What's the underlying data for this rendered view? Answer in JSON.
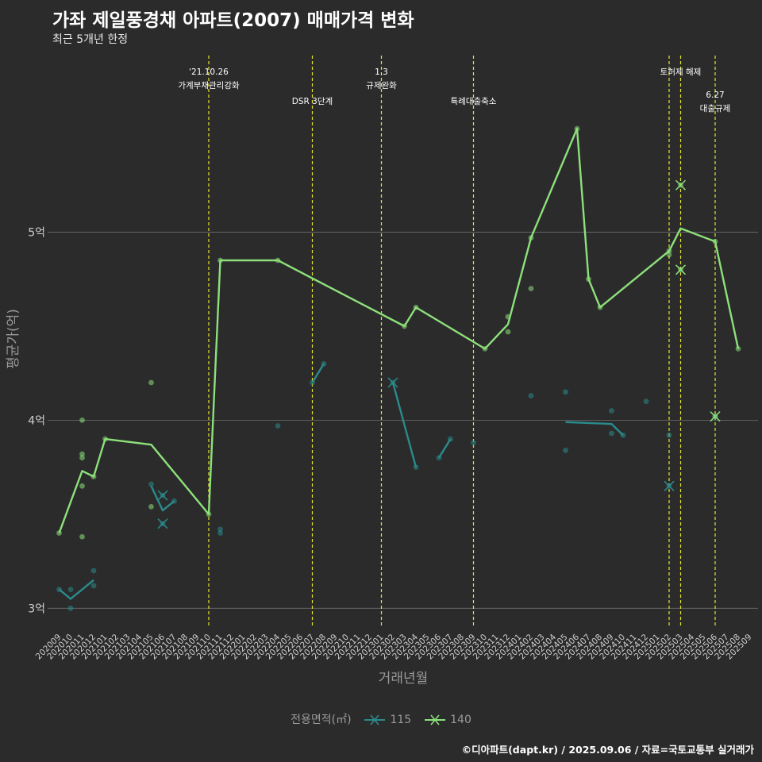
{
  "title": "가좌 제일풍경채 아파트(2007) 매매가격 변화",
  "subtitle": "최근 5개년 한정",
  "caption": "©디아파트(dapt.kr) / 2025.09.06 / 자료=국토교통부 실거래가",
  "colors": {
    "background": "#2b2b2c",
    "series_115": "#2a8b8b",
    "series_140": "#8de07a",
    "event_line": "#e5e52c",
    "grid": "#6e6e6e",
    "axis_text": "#9a9a9a"
  },
  "legend": {
    "title": "전용면적(㎡)",
    "items": [
      "115",
      "140"
    ]
  },
  "chart_data": {
    "type": "line",
    "xlabel": "거래년월",
    "ylabel": "평균가(억)",
    "ylim": [
      2.9,
      5.96
    ],
    "yticks": [
      3,
      4,
      5
    ],
    "ytick_labels": [
      "3억",
      "4억",
      "5억"
    ],
    "x_range": [
      "202009",
      "202509"
    ],
    "x_ticks": [
      "202009",
      "202010",
      "202011",
      "202012",
      "202101",
      "202102",
      "202103",
      "202104",
      "202105",
      "202106",
      "202107",
      "202108",
      "202109",
      "202110",
      "202111",
      "202112",
      "202201",
      "202202",
      "202203",
      "202204",
      "202205",
      "202206",
      "202207",
      "202208",
      "202209",
      "202210",
      "202211",
      "202212",
      "202301",
      "202302",
      "202303",
      "202304",
      "202305",
      "202306",
      "202307",
      "202308",
      "202309",
      "202310",
      "202311",
      "202312",
      "202401",
      "202402",
      "202403",
      "202404",
      "202405",
      "202406",
      "202407",
      "202408",
      "202409",
      "202410",
      "202411",
      "202412",
      "202501",
      "202502",
      "202503",
      "202504",
      "202505",
      "202506",
      "202507",
      "202508",
      "202509"
    ],
    "grid": "horizontal major lines at 3억, 4억, 5억",
    "events": [
      {
        "x": "202110",
        "label": "'21.10.26\n가계부채관리강화"
      },
      {
        "x": "202207",
        "label": "DSR 3단계"
      },
      {
        "x": "202301",
        "label": "1.3\n규제완화"
      },
      {
        "x": "202309",
        "label": "특례대출축소"
      },
      {
        "x": "202502",
        "label": ""
      },
      {
        "x": "202503",
        "label": "토허제 해제"
      },
      {
        "x": "202506",
        "label": "6.27\n대출규제"
      }
    ],
    "series": [
      {
        "name": "115",
        "color": "#2a8b8b",
        "lines": [
          [
            [
              "202009",
              3.1
            ],
            [
              "202010",
              3.05
            ],
            [
              "202012",
              3.15
            ]
          ],
          [
            [
              "202105",
              3.65
            ],
            [
              "202106",
              3.52
            ],
            [
              "202107",
              3.57
            ]
          ],
          [
            [
              "202207",
              4.2
            ],
            [
              "202208",
              4.3
            ]
          ],
          [
            [
              "202302",
              4.2
            ],
            [
              "202304",
              3.75
            ]
          ],
          [
            [
              "202306",
              3.8
            ],
            [
              "202307",
              3.9
            ]
          ],
          [
            [
              "202405",
              3.99
            ],
            [
              "202409",
              3.98
            ],
            [
              "202410",
              3.92
            ]
          ]
        ],
        "points": [
          [
            "202009",
            3.1
          ],
          [
            "202010",
            3.1
          ],
          [
            "202010",
            3.0
          ],
          [
            "202012",
            3.2
          ],
          [
            "202012",
            3.12
          ],
          [
            "202105",
            3.66
          ],
          [
            "202106",
            3.6
          ],
          [
            "202106",
            3.45
          ],
          [
            "202107",
            3.57
          ],
          [
            "202111",
            3.42
          ],
          [
            "202111",
            3.4
          ],
          [
            "202204",
            3.97
          ],
          [
            "202207",
            4.2
          ],
          [
            "202208",
            4.3
          ],
          [
            "202302",
            4.2
          ],
          [
            "202304",
            3.75
          ],
          [
            "202306",
            3.8
          ],
          [
            "202307",
            3.9
          ],
          [
            "202309",
            3.88
          ],
          [
            "202402",
            4.13
          ],
          [
            "202405",
            4.15
          ],
          [
            "202405",
            3.84
          ],
          [
            "202409",
            4.05
          ],
          [
            "202409",
            3.93
          ],
          [
            "202410",
            3.92
          ],
          [
            "202412",
            4.1
          ],
          [
            "202502",
            3.92
          ],
          [
            "202502",
            3.65
          ],
          [
            "202506",
            4.02
          ]
        ],
        "cancelled": [
          [
            "202106",
            3.6
          ],
          [
            "202106",
            3.45
          ],
          [
            "202302",
            4.2
          ],
          [
            "202502",
            3.65
          ],
          [
            "202506",
            4.02
          ]
        ]
      },
      {
        "name": "140",
        "color": "#8de07a",
        "lines": [
          [
            [
              "202009",
              3.4
            ],
            [
              "202011",
              3.73
            ],
            [
              "202012",
              3.7
            ],
            [
              "202101",
              3.9
            ],
            [
              "202105",
              3.87
            ],
            [
              "202110",
              3.5
            ],
            [
              "202111",
              4.85
            ],
            [
              "202204",
              4.85
            ],
            [
              "202303",
              4.5
            ],
            [
              "202304",
              4.6
            ],
            [
              "202310",
              4.38
            ],
            [
              "202312",
              4.51
            ],
            [
              "202402",
              4.97
            ],
            [
              "202406",
              5.55
            ],
            [
              "202407",
              4.75
            ],
            [
              "202408",
              4.6
            ],
            [
              "202502",
              4.9
            ],
            [
              "202503",
              5.02
            ],
            [
              "202506",
              4.95
            ],
            [
              "202508",
              4.38
            ]
          ]
        ],
        "points": [
          [
            "202009",
            3.4
          ],
          [
            "202011",
            4.0
          ],
          [
            "202011",
            3.82
          ],
          [
            "202011",
            3.8
          ],
          [
            "202011",
            3.65
          ],
          [
            "202011",
            3.38
          ],
          [
            "202012",
            3.7
          ],
          [
            "202101",
            3.9
          ],
          [
            "202105",
            4.2
          ],
          [
            "202105",
            3.54
          ],
          [
            "202110",
            3.5
          ],
          [
            "202111",
            4.85
          ],
          [
            "202204",
            4.85
          ],
          [
            "202303",
            4.5
          ],
          [
            "202304",
            4.6
          ],
          [
            "202310",
            4.38
          ],
          [
            "202312",
            4.55
          ],
          [
            "202312",
            4.47
          ],
          [
            "202402",
            4.97
          ],
          [
            "202402",
            4.7
          ],
          [
            "202406",
            5.55
          ],
          [
            "202407",
            4.75
          ],
          [
            "202408",
            4.6
          ],
          [
            "202502",
            4.9
          ],
          [
            "202502",
            4.88
          ],
          [
            "202503",
            5.25
          ],
          [
            "202503",
            4.8
          ],
          [
            "202506",
            4.95
          ],
          [
            "202506",
            4.02
          ],
          [
            "202508",
            4.38
          ]
        ],
        "cancelled": [
          [
            "202503",
            5.25
          ],
          [
            "202503",
            4.8
          ],
          [
            "202506",
            4.02
          ]
        ]
      }
    ]
  }
}
